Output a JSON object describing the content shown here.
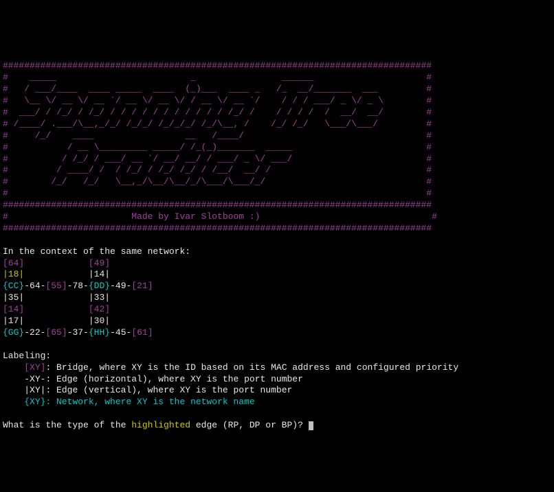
{
  "colors": {
    "background": "#000000",
    "purple": "#a040a0",
    "cyan": "#00c8c8",
    "yellow": "#c8c800",
    "white": "#e8e8e8",
    "gray": "#c0c0c0"
  },
  "banner": {
    "border_char": "#",
    "width_chars": 80,
    "title_ascii_art": "Spanning Tree Practicer",
    "credit": "Made by Ivar Slotboom :)"
  },
  "context_line": "In the context of the same network:",
  "network": {
    "row1": {
      "bridge_a": "[64]",
      "spacer1": "            ",
      "bridge_b": "[49]"
    },
    "row2": {
      "edge_a": "|18|",
      "spacer1": "            ",
      "edge_b": "|14|",
      "highlighted_edge": "|18|"
    },
    "row3": {
      "net_a": "{CC}",
      "t1": "-64-",
      "bridge_a": "[55]",
      "t2": "-78-",
      "net_b": "{DD}",
      "t3": "-49-",
      "bridge_b": "[21]"
    },
    "row4": {
      "edge_a": "|35|",
      "spacer1": "            ",
      "edge_b": "|33|"
    },
    "row5": {
      "bridge_a": "[14]",
      "spacer1": "            ",
      "bridge_b": "[42]"
    },
    "row6": {
      "edge_a": "|17|",
      "spacer1": "            ",
      "edge_b": "|30|"
    },
    "row7": {
      "net_a": "{GG}",
      "t1": "-22-",
      "bridge_a": "[65]",
      "t2": "-37-",
      "net_b": "{HH}",
      "t3": "-45-",
      "bridge_b": "[61]"
    }
  },
  "labeling": {
    "heading": "Labeling:",
    "bridge_tag": "[XY]",
    "bridge_desc": ": Bridge, where XY is the ID based on its MAC address and configured priority",
    "edge_h_tag": "-XY-",
    "edge_h_desc": ": Edge (horizontal), where XY is the port number",
    "edge_v_tag": "|XY|",
    "edge_v_desc": ": Edge (vertical), where XY is the port number",
    "net_tag": "{XY}",
    "net_desc": ": Network, where XY is the network name"
  },
  "prompt": {
    "pre": "What is the type of the ",
    "highlighted": "highlighted",
    "post": " edge (RP, DP or BP)? "
  }
}
